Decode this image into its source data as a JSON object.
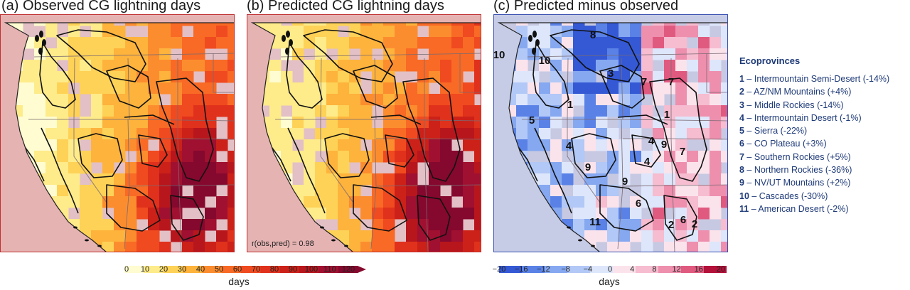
{
  "panels": [
    {
      "title": "(a) Observed CG lightning days"
    },
    {
      "title": "(b) Predicted CG lightning days"
    },
    {
      "title": "(c) Predicted minus observed"
    }
  ],
  "correlation_label": "r(obs,pred) = 0.98",
  "colorbar_days": {
    "ticks": [
      "0",
      "10",
      "20",
      "30",
      "40",
      "50",
      "60",
      "70",
      "80",
      "90",
      "100",
      "110",
      "120"
    ],
    "label": "days",
    "colors": [
      "#fefcd0",
      "#feeb8a",
      "#fed257",
      "#fdb33c",
      "#fc8d2f",
      "#f86a25",
      "#f04a20",
      "#e0311c",
      "#cc2118",
      "#b8161d",
      "#a01030",
      "#85082e"
    ]
  },
  "colorbar_diff": {
    "ticks": [
      "−20",
      "−16",
      "−12",
      "−8",
      "−4",
      "0",
      "4",
      "8",
      "12",
      "16",
      "20"
    ],
    "label": "days",
    "colors": [
      "#3559d4",
      "#5a82e6",
      "#86a8f0",
      "#b2c8f6",
      "#dde6fb",
      "#fbe3ec",
      "#f6bcd0",
      "#ee8fae",
      "#e05a80",
      "#b3103a"
    ]
  },
  "map_labels_c": [
    {
      "text": "10"
    },
    {
      "text": "10"
    },
    {
      "text": "8"
    },
    {
      "text": "3"
    },
    {
      "text": "7"
    },
    {
      "text": "7"
    },
    {
      "text": "1"
    },
    {
      "text": "1"
    },
    {
      "text": "5"
    },
    {
      "text": "4"
    },
    {
      "text": "9"
    },
    {
      "text": "4"
    },
    {
      "text": "9"
    },
    {
      "text": "4"
    },
    {
      "text": "7"
    },
    {
      "text": "9"
    },
    {
      "text": "6"
    },
    {
      "text": "6"
    },
    {
      "text": "2"
    },
    {
      "text": "2"
    },
    {
      "text": "11"
    }
  ],
  "legend": {
    "title": "Ecoprovinces",
    "items": [
      {
        "num": "1",
        "text": " – Intermountain Semi-Desert (-14%)"
      },
      {
        "num": "2",
        "text": " – AZ/NM Mountains (+4%)"
      },
      {
        "num": "3",
        "text": " – Middle Rockies (-14%)"
      },
      {
        "num": "4",
        "text": " – Intermountain Desert (-1%)"
      },
      {
        "num": "5",
        "text": " – Sierra (-22%)"
      },
      {
        "num": "6",
        "text": " – CO Plateau (+3%)"
      },
      {
        "num": "7",
        "text": " – Southern Rockies (+5%)"
      },
      {
        "num": "8",
        "text": " – Northern Rockies (-36%)"
      },
      {
        "num": "9",
        "text": " – NV/UT Mountains (+2%)"
      },
      {
        "num": "10",
        "text": " – Cascades (-30%)"
      },
      {
        "num": "11",
        "text": " – American Desert (-2%)"
      }
    ]
  },
  "colors": {
    "ocean_obs": "#e6b3b3",
    "ocean_diff": "#c6cce6",
    "outline": "#1a1a1a",
    "legend_text": "#1e3a78"
  }
}
